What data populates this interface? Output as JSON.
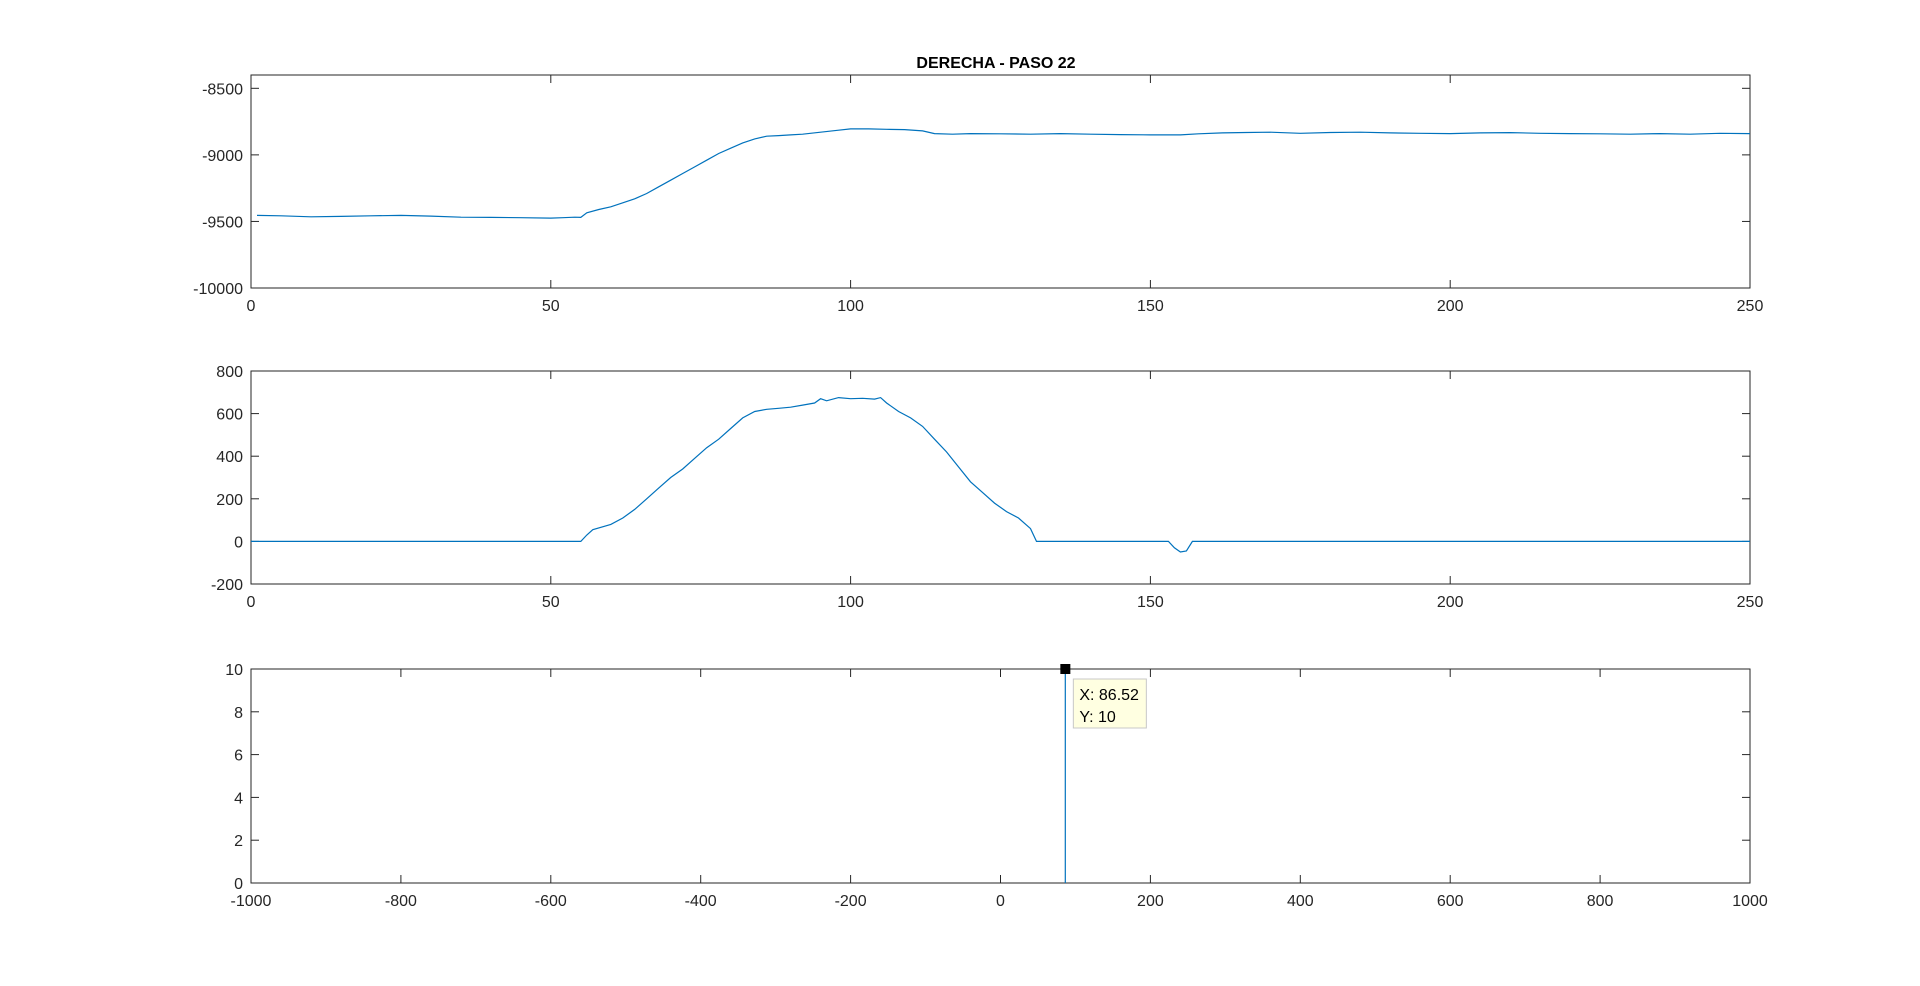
{
  "figure": {
    "background": "#ffffff"
  },
  "title": "DERECHA - PASO 22",
  "colors": {
    "series": "#0072bd",
    "axes": "#262626",
    "tooltip_bg": "#ffffe1",
    "tooltip_border": "#c8c8c8",
    "marker": "#000000"
  },
  "chart_data": [
    {
      "type": "line",
      "title": "DERECHA - PASO 22",
      "xlabel": "",
      "ylabel": "",
      "xlim": [
        0,
        250
      ],
      "ylim": [
        -10000,
        -8400
      ],
      "x_ticks": [
        0,
        50,
        100,
        150,
        200,
        250
      ],
      "y_ticks": [
        -10000,
        -9500,
        -9000,
        -8500
      ],
      "grid": false,
      "x": [
        1,
        5,
        10,
        15,
        20,
        25,
        30,
        35,
        40,
        45,
        50,
        52,
        54,
        55,
        56,
        58,
        60,
        62,
        64,
        66,
        68,
        70,
        72,
        74,
        76,
        78,
        80,
        82,
        84,
        86,
        88,
        90,
        92,
        95,
        98,
        100,
        103,
        106,
        109,
        112,
        114,
        117,
        120,
        125,
        130,
        135,
        140,
        145,
        150,
        155,
        158,
        162,
        166,
        170,
        175,
        180,
        185,
        190,
        195,
        200,
        205,
        210,
        215,
        220,
        225,
        230,
        235,
        240,
        245,
        250
      ],
      "y": [
        -9455,
        -9458,
        -9465,
        -9462,
        -9458,
        -9455,
        -9460,
        -9468,
        -9470,
        -9472,
        -9475,
        -9472,
        -9468,
        -9470,
        -9435,
        -9410,
        -9390,
        -9360,
        -9330,
        -9290,
        -9240,
        -9190,
        -9140,
        -9090,
        -9040,
        -8990,
        -8950,
        -8910,
        -8880,
        -8860,
        -8855,
        -8850,
        -8845,
        -8830,
        -8815,
        -8805,
        -8805,
        -8808,
        -8810,
        -8820,
        -8840,
        -8845,
        -8840,
        -8842,
        -8845,
        -8840,
        -8845,
        -8848,
        -8850,
        -8850,
        -8842,
        -8835,
        -8832,
        -8830,
        -8838,
        -8832,
        -8830,
        -8835,
        -8838,
        -8840,
        -8835,
        -8833,
        -8838,
        -8840,
        -8842,
        -8845,
        -8840,
        -8845,
        -8838,
        -8840
      ]
    },
    {
      "type": "line",
      "xlabel": "",
      "ylabel": "",
      "xlim": [
        0,
        250
      ],
      "ylim": [
        -200,
        800
      ],
      "x_ticks": [
        0,
        50,
        100,
        150,
        200,
        250
      ],
      "y_ticks": [
        -200,
        0,
        200,
        400,
        600,
        800
      ],
      "grid": false,
      "x": [
        0,
        10,
        20,
        30,
        40,
        50,
        55,
        56,
        57,
        60,
        62,
        64,
        66,
        68,
        70,
        72,
        74,
        76,
        78,
        80,
        82,
        84,
        86,
        88,
        90,
        92,
        94,
        95,
        96,
        98,
        100,
        102,
        104,
        105,
        106,
        108,
        110,
        112,
        114,
        116,
        118,
        120,
        122,
        124,
        126,
        128,
        130,
        131,
        135,
        140,
        145,
        150,
        153,
        154,
        155,
        156,
        157,
        160,
        170,
        180,
        190,
        200,
        210,
        220,
        230,
        240,
        250
      ],
      "y": [
        0,
        0,
        0,
        0,
        0,
        0,
        0,
        30,
        55,
        80,
        110,
        150,
        200,
        250,
        300,
        340,
        390,
        440,
        480,
        530,
        580,
        610,
        620,
        625,
        630,
        640,
        650,
        670,
        660,
        675,
        670,
        672,
        668,
        675,
        650,
        610,
        580,
        540,
        480,
        420,
        350,
        280,
        230,
        180,
        140,
        110,
        60,
        0,
        0,
        0,
        0,
        0,
        0,
        -30,
        -50,
        -45,
        0,
        0,
        0,
        0,
        0,
        0,
        0,
        0,
        0,
        0,
        0
      ]
    },
    {
      "type": "line",
      "xlabel": "",
      "ylabel": "",
      "xlim": [
        -1000,
        1000
      ],
      "ylim": [
        0,
        10
      ],
      "x_ticks": [
        -1000,
        -800,
        -600,
        -400,
        -200,
        0,
        200,
        400,
        600,
        800,
        1000
      ],
      "y_ticks": [
        0,
        2,
        4,
        6,
        8,
        10
      ],
      "grid": false,
      "x": [
        86.52,
        86.52
      ],
      "y": [
        0,
        10
      ],
      "datatip": {
        "x": 86.52,
        "y": 10,
        "label_x": "X: 86.52",
        "label_y": "Y: 10"
      }
    }
  ]
}
